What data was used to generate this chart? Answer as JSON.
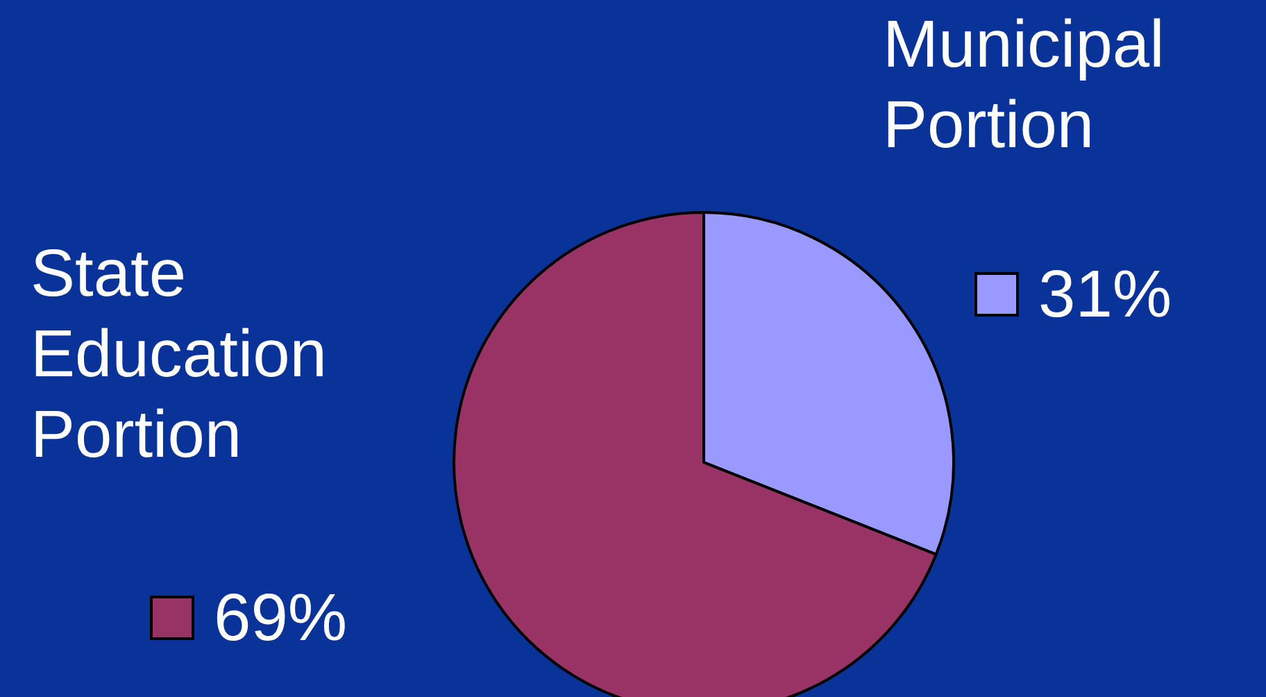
{
  "chart_data": {
    "type": "pie",
    "categories": [
      "Municipal Portion",
      "State Education Portion"
    ],
    "values": [
      31,
      69
    ],
    "colors": [
      "#9999ff",
      "#993366"
    ],
    "value_labels": [
      "31%",
      "69%"
    ]
  }
}
